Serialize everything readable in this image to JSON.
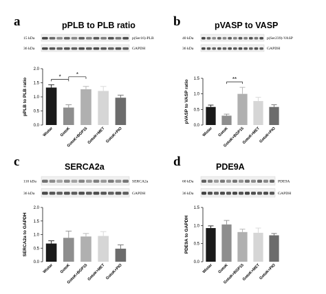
{
  "chart_data": [
    {
      "panel": "a",
      "type": "bar",
      "title": "pPLB to PLB ratio",
      "ylabel": "pPLB to PLB ratio",
      "ylim": [
        0,
        2.0
      ],
      "yticks": [
        "0.0",
        "0.5",
        "1.0",
        "1.5",
        "2.0"
      ],
      "categories": [
        "Wistar",
        "GotoK",
        "GotoK+BGP15",
        "GotoK+MET",
        "GotoK+PIO"
      ],
      "values": [
        1.33,
        0.62,
        1.27,
        1.21,
        0.97
      ],
      "errors": [
        0.1,
        0.1,
        0.1,
        0.16,
        0.09
      ],
      "bar_colors": [
        "#1a1a1a",
        "#8e8e8e",
        "#b0b0b0",
        "#d6d6d6",
        "#6c6c6c"
      ],
      "significance": [
        {
          "from": 0,
          "to": 1,
          "label": "*"
        },
        {
          "from": 1,
          "to": 2,
          "label": "*"
        }
      ],
      "blots": [
        {
          "size": "15 kDa",
          "protein": "p(Ser16)-PLB"
        },
        {
          "size": "36 kDa",
          "protein": "GAPDH"
        }
      ]
    },
    {
      "panel": "b",
      "type": "bar",
      "title": "pVASP to VASP",
      "ylabel": "pVASP to VASP ratio",
      "ylim": [
        0,
        1.5
      ],
      "yticks": [
        "0.0",
        "0.5",
        "1.0",
        "1.5"
      ],
      "categories": [
        "Wistar",
        "GotoK",
        "GotoK+BGP15",
        "GotoK+MET",
        "GotoK+PIO"
      ],
      "values": [
        0.58,
        0.3,
        1.0,
        0.77,
        0.58
      ],
      "errors": [
        0.06,
        0.05,
        0.21,
        0.12,
        0.07
      ],
      "bar_colors": [
        "#1a1a1a",
        "#8e8e8e",
        "#b0b0b0",
        "#d6d6d6",
        "#6c6c6c"
      ],
      "significance": [
        {
          "from": 1,
          "to": 2,
          "label": "**"
        }
      ],
      "blots": [
        {
          "size": "40 kDa",
          "protein": "p(Ser239)-VASP"
        },
        {
          "size": "36 kDa",
          "protein": "GAPDH"
        }
      ]
    },
    {
      "panel": "c",
      "type": "bar",
      "title": "SERCA2a",
      "ylabel": "SERCA2a to GAPDH",
      "ylim": [
        0,
        2.0
      ],
      "yticks": [
        "0.0",
        "0.5",
        "1.0",
        "1.5",
        "2.0"
      ],
      "categories": [
        "Wistar",
        "GotoK",
        "GotoK+BGP15",
        "GotoK+MET",
        "GotoK+PIO"
      ],
      "values": [
        0.67,
        0.88,
        0.93,
        0.95,
        0.48
      ],
      "errors": [
        0.1,
        0.25,
        0.11,
        0.16,
        0.14
      ],
      "bar_colors": [
        "#1a1a1a",
        "#8e8e8e",
        "#b0b0b0",
        "#d6d6d6",
        "#6c6c6c"
      ],
      "significance": [],
      "blots": [
        {
          "size": "110 kDa",
          "protein": "SERCA2a"
        },
        {
          "size": "36 kDa",
          "protein": "GAPDH"
        }
      ]
    },
    {
      "panel": "d",
      "type": "bar",
      "title": "PDE9A",
      "ylabel": "PDE9A to GAPDH",
      "ylim": [
        0,
        1.5
      ],
      "yticks": [
        "0.0",
        "0.5",
        "1.0",
        "1.5"
      ],
      "categories": [
        "Wistar",
        "GotoK",
        "GotoK+BGP15",
        "GotoK+MET",
        "GotoK+PIO"
      ],
      "values": [
        0.93,
        1.03,
        0.82,
        0.8,
        0.73
      ],
      "errors": [
        0.06,
        0.11,
        0.08,
        0.13,
        0.05
      ],
      "bar_colors": [
        "#1a1a1a",
        "#8e8e8e",
        "#b0b0b0",
        "#d6d6d6",
        "#6c6c6c"
      ],
      "significance": [],
      "blots": [
        {
          "size": "60 kDa",
          "protein": "PDE9A"
        },
        {
          "size": "36 kDa",
          "protein": "GAPDH"
        }
      ]
    }
  ]
}
